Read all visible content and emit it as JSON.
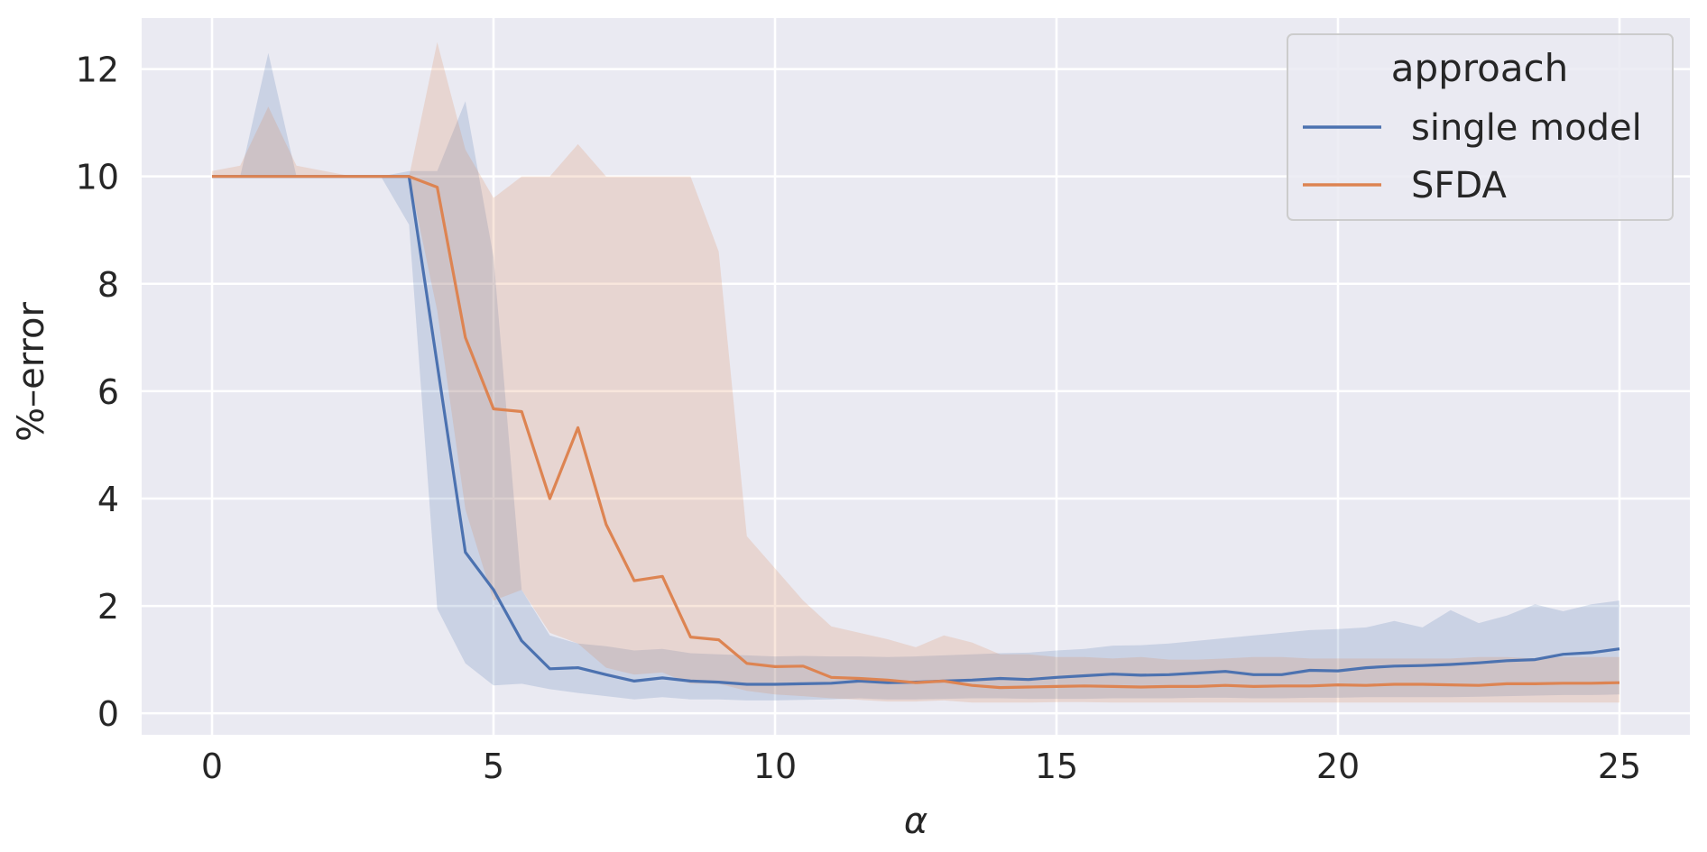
{
  "chart_data": {
    "type": "line",
    "xlabel": "α",
    "ylabel": "%–error",
    "xlim": [
      -1.25,
      26.25
    ],
    "ylim": [
      -0.4,
      12.95
    ],
    "xticks": [
      0,
      5,
      10,
      15,
      20,
      25
    ],
    "yticks": [
      0,
      2,
      4,
      6,
      8,
      10,
      12
    ],
    "grid": true,
    "legend": {
      "title": "approach",
      "placement": "top-right"
    },
    "colors": {
      "background": "#eaeaf2",
      "grid": "#ffffff"
    },
    "series": [
      {
        "name": "single model",
        "color": "#4c72b0",
        "x": [
          0,
          0.5,
          1,
          1.5,
          2,
          2.5,
          3,
          3.5,
          4,
          4.5,
          5,
          5.5,
          6,
          6.5,
          7,
          7.5,
          8,
          8.5,
          9,
          9.5,
          10,
          10.5,
          11,
          11.5,
          12,
          12.5,
          13,
          13.5,
          14,
          14.5,
          15,
          15.5,
          16,
          16.5,
          17,
          17.5,
          18,
          18.5,
          19,
          19.5,
          20,
          20.5,
          21,
          21.5,
          22,
          22.5,
          23,
          23.5,
          24,
          24.5,
          25
        ],
        "y": [
          10,
          10,
          10,
          10,
          10,
          10,
          10,
          10,
          6.5,
          3.0,
          2.3,
          1.35,
          0.83,
          0.85,
          0.72,
          0.6,
          0.66,
          0.6,
          0.58,
          0.54,
          0.54,
          0.55,
          0.56,
          0.6,
          0.57,
          0.58,
          0.6,
          0.62,
          0.65,
          0.63,
          0.67,
          0.7,
          0.73,
          0.71,
          0.72,
          0.75,
          0.78,
          0.72,
          0.72,
          0.8,
          0.79,
          0.85,
          0.88,
          0.89,
          0.91,
          0.94,
          0.98,
          1.0,
          1.1,
          1.13,
          1.2
        ],
        "lower": [
          10,
          10,
          10,
          10,
          10,
          10,
          10,
          9.1,
          1.95,
          0.93,
          0.52,
          0.55,
          0.45,
          0.38,
          0.32,
          0.26,
          0.3,
          0.26,
          0.26,
          0.24,
          0.24,
          0.25,
          0.26,
          0.28,
          0.26,
          0.26,
          0.27,
          0.28,
          0.28,
          0.27,
          0.27,
          0.27,
          0.28,
          0.28,
          0.28,
          0.29,
          0.29,
          0.28,
          0.28,
          0.29,
          0.29,
          0.3,
          0.3,
          0.3,
          0.3,
          0.31,
          0.32,
          0.33,
          0.34,
          0.34,
          0.35
        ],
        "upper": [
          10,
          10,
          12.3,
          10,
          10,
          10,
          10,
          10.1,
          10.1,
          11.4,
          8.5,
          2.3,
          1.45,
          1.3,
          1.25,
          1.17,
          1.2,
          1.12,
          1.1,
          1.08,
          1.06,
          1.07,
          1.06,
          1.06,
          1.05,
          1.06,
          1.08,
          1.1,
          1.12,
          1.13,
          1.17,
          1.2,
          1.26,
          1.27,
          1.3,
          1.35,
          1.4,
          1.45,
          1.5,
          1.55,
          1.57,
          1.6,
          1.72,
          1.6,
          1.92,
          1.68,
          1.82,
          2.03,
          1.9,
          2.03,
          2.1
        ]
      },
      {
        "name": "SFDA",
        "color": "#dd8452",
        "x": [
          0,
          0.5,
          1,
          1.5,
          2,
          2.5,
          3,
          3.5,
          4,
          4.5,
          5,
          5.5,
          6,
          6.5,
          7,
          7.5,
          8,
          8.5,
          9,
          9.5,
          10,
          10.5,
          11,
          11.5,
          12,
          12.5,
          13,
          13.5,
          14,
          14.5,
          15,
          15.5,
          16,
          16.5,
          17,
          17.5,
          18,
          18.5,
          19,
          19.5,
          20,
          20.5,
          21,
          21.5,
          22,
          22.5,
          23,
          23.5,
          24,
          24.5,
          25
        ],
        "y": [
          10,
          10,
          10,
          10,
          10,
          10,
          10,
          10,
          9.8,
          7.0,
          5.67,
          5.62,
          4.0,
          5.32,
          3.52,
          2.47,
          2.55,
          1.42,
          1.37,
          0.93,
          0.87,
          0.88,
          0.67,
          0.65,
          0.62,
          0.57,
          0.6,
          0.52,
          0.48,
          0.49,
          0.5,
          0.51,
          0.5,
          0.49,
          0.5,
          0.5,
          0.52,
          0.5,
          0.51,
          0.51,
          0.53,
          0.52,
          0.54,
          0.54,
          0.53,
          0.52,
          0.55,
          0.55,
          0.56,
          0.56,
          0.57
        ],
        "lower": [
          10,
          10,
          10,
          10,
          10,
          10,
          10,
          10,
          7.5,
          3.8,
          2.1,
          2.3,
          1.5,
          1.3,
          0.85,
          0.72,
          0.76,
          0.55,
          0.55,
          0.42,
          0.35,
          0.32,
          0.28,
          0.25,
          0.22,
          0.22,
          0.24,
          0.2,
          0.2,
          0.2,
          0.21,
          0.21,
          0.2,
          0.2,
          0.2,
          0.2,
          0.2,
          0.2,
          0.2,
          0.2,
          0.2,
          0.2,
          0.2,
          0.2,
          0.2,
          0.2,
          0.2,
          0.2,
          0.2,
          0.2,
          0.2
        ],
        "upper": [
          10.1,
          10.2,
          11.3,
          10.2,
          10.1,
          10.0,
          10.0,
          10.0,
          12.5,
          10.5,
          9.6,
          10.0,
          10.0,
          10.6,
          10.0,
          10.0,
          10.0,
          10.0,
          8.6,
          3.3,
          2.7,
          2.1,
          1.62,
          1.5,
          1.38,
          1.23,
          1.45,
          1.32,
          1.1,
          1.1,
          1.05,
          1.05,
          1.02,
          1.05,
          1.0,
          1.0,
          1.02,
          1.05,
          1.05,
          1.02,
          1.02,
          1.02,
          1.02,
          1.02,
          1.02,
          1.05,
          1.05,
          1.02,
          1.05,
          1.05,
          1.05
        ]
      }
    ]
  }
}
